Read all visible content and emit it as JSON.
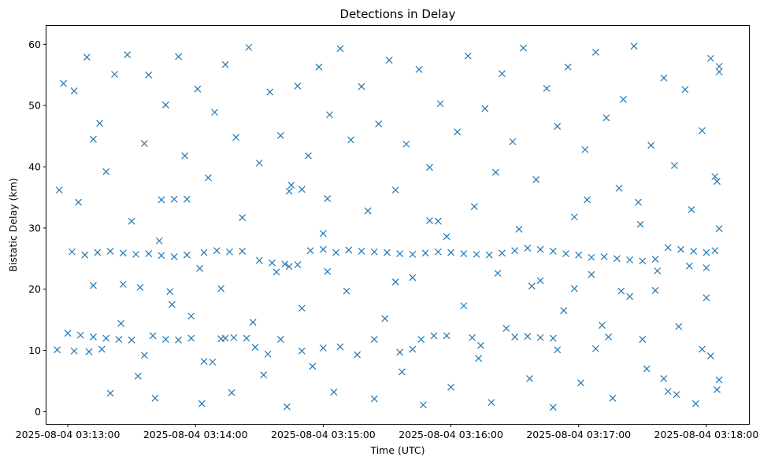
{
  "chart_data": {
    "type": "scatter",
    "title": "Detections in Delay",
    "xlabel": "Time (UTC)",
    "ylabel": "Bistatic Delay (km)",
    "x_type": "time",
    "xlim": [
      "2025-08-04 03:12:50",
      "2025-08-04 03:18:20"
    ],
    "ylim": [
      -2,
      63
    ],
    "x_ticks": [
      "2025-08-04 03:13:00",
      "2025-08-04 03:14:00",
      "2025-08-04 03:15:00",
      "2025-08-04 03:16:00",
      "2025-08-04 03:17:00",
      "2025-08-04 03:18:00"
    ],
    "y_ticks": [
      0,
      10,
      20,
      30,
      40,
      50,
      60
    ],
    "grid": false,
    "marker": "x",
    "color": "#1f77b4",
    "series": [
      {
        "points": [
          [
            "2025-08-04 03:13:02",
            26.1
          ],
          [
            "2025-08-04 03:13:08",
            25.6
          ],
          [
            "2025-08-04 03:13:14",
            26.0
          ],
          [
            "2025-08-04 03:13:20",
            26.2
          ],
          [
            "2025-08-04 03:13:26",
            25.9
          ],
          [
            "2025-08-04 03:13:32",
            25.7
          ],
          [
            "2025-08-04 03:13:38",
            25.8
          ],
          [
            "2025-08-04 03:13:44",
            25.5
          ],
          [
            "2025-08-04 03:13:50",
            25.3
          ],
          [
            "2025-08-04 03:13:56",
            25.6
          ],
          [
            "2025-08-04 03:14:04",
            26.0
          ],
          [
            "2025-08-04 03:14:10",
            26.3
          ],
          [
            "2025-08-04 03:14:16",
            26.1
          ],
          [
            "2025-08-04 03:14:22",
            26.2
          ],
          [
            "2025-08-04 03:14:30",
            24.7
          ],
          [
            "2025-08-04 03:14:36",
            24.3
          ],
          [
            "2025-08-04 03:14:42",
            24.1
          ],
          [
            "2025-08-04 03:14:48",
            24.0
          ],
          [
            "2025-08-04 03:14:54",
            26.3
          ],
          [
            "2025-08-04 03:15:00",
            26.5
          ],
          [
            "2025-08-04 03:15:06",
            26.0
          ],
          [
            "2025-08-04 03:15:12",
            26.4
          ],
          [
            "2025-08-04 03:15:18",
            26.2
          ],
          [
            "2025-08-04 03:15:24",
            26.1
          ],
          [
            "2025-08-04 03:15:30",
            26.0
          ],
          [
            "2025-08-04 03:15:36",
            25.8
          ],
          [
            "2025-08-04 03:15:42",
            25.7
          ],
          [
            "2025-08-04 03:15:48",
            25.9
          ],
          [
            "2025-08-04 03:15:54",
            26.1
          ],
          [
            "2025-08-04 03:16:00",
            26.0
          ],
          [
            "2025-08-04 03:16:06",
            25.8
          ],
          [
            "2025-08-04 03:16:12",
            25.7
          ],
          [
            "2025-08-04 03:16:18",
            25.6
          ],
          [
            "2025-08-04 03:16:24",
            25.9
          ],
          [
            "2025-08-04 03:16:30",
            26.3
          ],
          [
            "2025-08-04 03:16:36",
            26.7
          ],
          [
            "2025-08-04 03:16:42",
            26.5
          ],
          [
            "2025-08-04 03:16:48",
            26.2
          ],
          [
            "2025-08-04 03:16:54",
            25.8
          ],
          [
            "2025-08-04 03:17:00",
            25.6
          ],
          [
            "2025-08-04 03:17:06",
            25.2
          ],
          [
            "2025-08-04 03:17:12",
            25.3
          ],
          [
            "2025-08-04 03:17:18",
            25.0
          ],
          [
            "2025-08-04 03:17:24",
            24.8
          ],
          [
            "2025-08-04 03:17:30",
            24.6
          ],
          [
            "2025-08-04 03:17:36",
            24.9
          ],
          [
            "2025-08-04 03:17:42",
            26.8
          ],
          [
            "2025-08-04 03:17:48",
            26.5
          ],
          [
            "2025-08-04 03:17:54",
            26.2
          ],
          [
            "2025-08-04 03:18:00",
            26.0
          ],
          [
            "2025-08-04 03:18:04",
            26.3
          ],
          [
            "2025-08-04 03:13:00",
            12.8
          ],
          [
            "2025-08-04 03:13:06",
            12.5
          ],
          [
            "2025-08-04 03:13:12",
            12.2
          ],
          [
            "2025-08-04 03:13:18",
            12.0
          ],
          [
            "2025-08-04 03:13:24",
            11.8
          ],
          [
            "2025-08-04 03:13:30",
            11.7
          ],
          [
            "2025-08-04 03:13:40",
            12.4
          ],
          [
            "2025-08-04 03:13:46",
            11.8
          ],
          [
            "2025-08-04 03:13:52",
            11.7
          ],
          [
            "2025-08-04 03:13:58",
            12.0
          ],
          [
            "2025-08-04 03:14:04",
            8.2
          ],
          [
            "2025-08-04 03:14:08",
            8.1
          ],
          [
            "2025-08-04 03:14:14",
            12.0
          ],
          [
            "2025-08-04 03:14:18",
            12.1
          ],
          [
            "2025-08-04 03:14:24",
            12.0
          ],
          [
            "2025-08-04 03:14:40",
            11.8
          ],
          [
            "2025-08-04 03:15:00",
            10.4
          ],
          [
            "2025-08-04 03:15:24",
            11.8
          ],
          [
            "2025-08-04 03:15:42",
            10.2
          ],
          [
            "2025-08-04 03:15:46",
            11.8
          ],
          [
            "2025-08-04 03:15:58",
            12.4
          ],
          [
            "2025-08-04 03:16:10",
            12.1
          ],
          [
            "2025-08-04 03:16:30",
            12.2
          ],
          [
            "2025-08-04 03:16:36",
            12.3
          ],
          [
            "2025-08-04 03:16:42",
            12.1
          ],
          [
            "2025-08-04 03:16:48",
            12.0
          ],
          [
            "2025-08-04 03:17:14",
            12.2
          ],
          [
            "2025-08-04 03:17:30",
            11.8
          ],
          [
            "2025-08-04 03:17:40",
            5.4
          ],
          [
            "2025-08-04 03:17:46",
            2.8
          ],
          [
            "2025-08-04 03:12:55",
            10.1
          ],
          [
            "2025-08-04 03:13:03",
            9.9
          ],
          [
            "2025-08-04 03:13:10",
            9.8
          ],
          [
            "2025-08-04 03:13:16",
            10.2
          ],
          [
            "2025-08-04 03:13:36",
            9.2
          ],
          [
            "2025-08-04 03:14:12",
            11.9
          ],
          [
            "2025-08-04 03:14:28",
            10.5
          ],
          [
            "2025-08-04 03:14:34",
            9.4
          ],
          [
            "2025-08-04 03:14:50",
            9.9
          ],
          [
            "2025-08-04 03:15:08",
            10.6
          ],
          [
            "2025-08-04 03:15:36",
            9.7
          ],
          [
            "2025-08-04 03:16:14",
            10.8
          ],
          [
            "2025-08-04 03:16:50",
            10.1
          ],
          [
            "2025-08-04 03:17:08",
            10.3
          ],
          [
            "2025-08-04 03:17:58",
            10.2
          ],
          [
            "2025-08-04 03:18:02",
            9.1
          ],
          [
            "2025-08-04 03:13:12",
            20.6
          ],
          [
            "2025-08-04 03:13:26",
            20.8
          ],
          [
            "2025-08-04 03:13:34",
            20.3
          ],
          [
            "2025-08-04 03:13:48",
            19.6
          ],
          [
            "2025-08-04 03:14:02",
            23.4
          ],
          [
            "2025-08-04 03:14:44",
            23.7
          ],
          [
            "2025-08-04 03:15:02",
            22.9
          ],
          [
            "2025-08-04 03:15:34",
            21.2
          ],
          [
            "2025-08-04 03:16:22",
            22.6
          ],
          [
            "2025-08-04 03:16:38",
            20.5
          ],
          [
            "2025-08-04 03:16:58",
            20.1
          ],
          [
            "2025-08-04 03:17:20",
            19.7
          ],
          [
            "2025-08-04 03:17:36",
            19.8
          ],
          [
            "2025-08-04 03:17:52",
            23.8
          ],
          [
            "2025-08-04 03:18:00",
            23.5
          ],
          [
            "2025-08-04 03:13:44",
            34.6
          ],
          [
            "2025-08-04 03:13:50",
            34.7
          ],
          [
            "2025-08-04 03:13:56",
            34.7
          ],
          [
            "2025-08-04 03:14:44",
            36.0
          ],
          [
            "2025-08-04 03:14:50",
            36.3
          ],
          [
            "2025-08-04 03:15:02",
            34.8
          ],
          [
            "2025-08-04 03:15:50",
            31.2
          ],
          [
            "2025-08-04 03:15:54",
            31.1
          ],
          [
            "2025-08-04 03:17:04",
            34.6
          ],
          [
            "2025-08-04 03:17:28",
            34.2
          ],
          [
            "2025-08-04 03:12:56",
            36.2
          ],
          [
            "2025-08-04 03:12:58",
            53.6
          ],
          [
            "2025-08-04 03:13:03",
            52.4
          ],
          [
            "2025-08-04 03:13:05",
            34.2
          ],
          [
            "2025-08-04 03:13:09",
            57.9
          ],
          [
            "2025-08-04 03:13:12",
            44.5
          ],
          [
            "2025-08-04 03:13:15",
            47.1
          ],
          [
            "2025-08-04 03:13:18",
            39.2
          ],
          [
            "2025-08-04 03:13:20",
            3.0
          ],
          [
            "2025-08-04 03:13:22",
            55.1
          ],
          [
            "2025-08-04 03:13:25",
            14.4
          ],
          [
            "2025-08-04 03:13:28",
            58.3
          ],
          [
            "2025-08-04 03:13:30",
            31.1
          ],
          [
            "2025-08-04 03:13:33",
            5.8
          ],
          [
            "2025-08-04 03:13:36",
            43.8
          ],
          [
            "2025-08-04 03:13:38",
            55.0
          ],
          [
            "2025-08-04 03:13:41",
            2.2
          ],
          [
            "2025-08-04 03:13:43",
            27.9
          ],
          [
            "2025-08-04 03:13:46",
            50.1
          ],
          [
            "2025-08-04 03:13:49",
            17.5
          ],
          [
            "2025-08-04 03:13:52",
            58.0
          ],
          [
            "2025-08-04 03:13:55",
            41.8
          ],
          [
            "2025-08-04 03:13:58",
            15.6
          ],
          [
            "2025-08-04 03:14:01",
            52.7
          ],
          [
            "2025-08-04 03:14:03",
            1.3
          ],
          [
            "2025-08-04 03:14:06",
            38.2
          ],
          [
            "2025-08-04 03:14:09",
            48.9
          ],
          [
            "2025-08-04 03:14:12",
            20.1
          ],
          [
            "2025-08-04 03:14:14",
            56.7
          ],
          [
            "2025-08-04 03:14:17",
            3.1
          ],
          [
            "2025-08-04 03:14:19",
            44.8
          ],
          [
            "2025-08-04 03:14:22",
            31.7
          ],
          [
            "2025-08-04 03:14:25",
            59.5
          ],
          [
            "2025-08-04 03:14:27",
            14.6
          ],
          [
            "2025-08-04 03:14:30",
            40.6
          ],
          [
            "2025-08-04 03:14:32",
            6.0
          ],
          [
            "2025-08-04 03:14:35",
            52.2
          ],
          [
            "2025-08-04 03:14:38",
            22.8
          ],
          [
            "2025-08-04 03:14:40",
            45.1
          ],
          [
            "2025-08-04 03:14:43",
            0.8
          ],
          [
            "2025-08-04 03:14:45",
            37.0
          ],
          [
            "2025-08-04 03:14:48",
            53.2
          ],
          [
            "2025-08-04 03:14:50",
            16.9
          ],
          [
            "2025-08-04 03:14:53",
            41.8
          ],
          [
            "2025-08-04 03:14:55",
            7.4
          ],
          [
            "2025-08-04 03:14:58",
            56.3
          ],
          [
            "2025-08-04 03:15:00",
            29.1
          ],
          [
            "2025-08-04 03:15:03",
            48.5
          ],
          [
            "2025-08-04 03:15:05",
            3.2
          ],
          [
            "2025-08-04 03:15:08",
            59.3
          ],
          [
            "2025-08-04 03:15:11",
            19.7
          ],
          [
            "2025-08-04 03:15:13",
            44.4
          ],
          [
            "2025-08-04 03:15:16",
            9.3
          ],
          [
            "2025-08-04 03:15:18",
            53.1
          ],
          [
            "2025-08-04 03:15:21",
            32.8
          ],
          [
            "2025-08-04 03:15:24",
            2.1
          ],
          [
            "2025-08-04 03:15:26",
            47.0
          ],
          [
            "2025-08-04 03:15:29",
            15.2
          ],
          [
            "2025-08-04 03:15:31",
            57.4
          ],
          [
            "2025-08-04 03:15:34",
            36.2
          ],
          [
            "2025-08-04 03:15:37",
            6.5
          ],
          [
            "2025-08-04 03:15:39",
            43.7
          ],
          [
            "2025-08-04 03:15:42",
            21.9
          ],
          [
            "2025-08-04 03:15:45",
            55.9
          ],
          [
            "2025-08-04 03:15:47",
            1.1
          ],
          [
            "2025-08-04 03:15:50",
            39.9
          ],
          [
            "2025-08-04 03:15:52",
            12.4
          ],
          [
            "2025-08-04 03:15:55",
            50.3
          ],
          [
            "2025-08-04 03:15:58",
            28.6
          ],
          [
            "2025-08-04 03:16:00",
            4.0
          ],
          [
            "2025-08-04 03:16:03",
            45.7
          ],
          [
            "2025-08-04 03:16:06",
            17.3
          ],
          [
            "2025-08-04 03:16:08",
            58.1
          ],
          [
            "2025-08-04 03:16:11",
            33.5
          ],
          [
            "2025-08-04 03:16:13",
            8.7
          ],
          [
            "2025-08-04 03:16:16",
            49.5
          ],
          [
            "2025-08-04 03:16:19",
            1.5
          ],
          [
            "2025-08-04 03:16:21",
            39.1
          ],
          [
            "2025-08-04 03:16:24",
            55.2
          ],
          [
            "2025-08-04 03:16:26",
            13.6
          ],
          [
            "2025-08-04 03:16:29",
            44.1
          ],
          [
            "2025-08-04 03:16:32",
            29.8
          ],
          [
            "2025-08-04 03:16:34",
            59.4
          ],
          [
            "2025-08-04 03:16:37",
            5.4
          ],
          [
            "2025-08-04 03:16:40",
            37.9
          ],
          [
            "2025-08-04 03:16:42",
            21.4
          ],
          [
            "2025-08-04 03:16:45",
            52.8
          ],
          [
            "2025-08-04 03:16:48",
            0.7
          ],
          [
            "2025-08-04 03:16:50",
            46.6
          ],
          [
            "2025-08-04 03:16:53",
            16.5
          ],
          [
            "2025-08-04 03:16:55",
            56.3
          ],
          [
            "2025-08-04 03:16:58",
            31.8
          ],
          [
            "2025-08-04 03:17:01",
            4.7
          ],
          [
            "2025-08-04 03:17:03",
            42.8
          ],
          [
            "2025-08-04 03:17:06",
            22.4
          ],
          [
            "2025-08-04 03:17:08",
            58.7
          ],
          [
            "2025-08-04 03:17:11",
            14.1
          ],
          [
            "2025-08-04 03:17:13",
            48.0
          ],
          [
            "2025-08-04 03:17:16",
            2.2
          ],
          [
            "2025-08-04 03:17:19",
            36.5
          ],
          [
            "2025-08-04 03:17:21",
            51.0
          ],
          [
            "2025-08-04 03:17:24",
            18.8
          ],
          [
            "2025-08-04 03:17:26",
            59.7
          ],
          [
            "2025-08-04 03:17:29",
            30.6
          ],
          [
            "2025-08-04 03:17:32",
            7.0
          ],
          [
            "2025-08-04 03:17:34",
            43.5
          ],
          [
            "2025-08-04 03:17:37",
            23.0
          ],
          [
            "2025-08-04 03:17:40",
            54.5
          ],
          [
            "2025-08-04 03:17:42",
            3.3
          ],
          [
            "2025-08-04 03:17:45",
            40.2
          ],
          [
            "2025-08-04 03:17:47",
            13.9
          ],
          [
            "2025-08-04 03:17:50",
            52.6
          ],
          [
            "2025-08-04 03:17:53",
            33.0
          ],
          [
            "2025-08-04 03:17:55",
            1.3
          ],
          [
            "2025-08-04 03:17:58",
            45.9
          ],
          [
            "2025-08-04 03:18:00",
            18.6
          ],
          [
            "2025-08-04 03:18:02",
            57.7
          ],
          [
            "2025-08-04 03:18:04",
            38.4
          ],
          [
            "2025-08-04 03:18:05",
            3.6
          ],
          [
            "2025-08-04 03:18:06",
            29.9
          ],
          [
            "2025-08-04 03:18:06",
            56.4
          ],
          [
            "2025-08-04 03:18:06",
            5.2
          ],
          [
            "2025-08-04 03:18:05",
            37.6
          ],
          [
            "2025-08-04 03:18:06",
            55.5
          ]
        ]
      }
    ]
  }
}
